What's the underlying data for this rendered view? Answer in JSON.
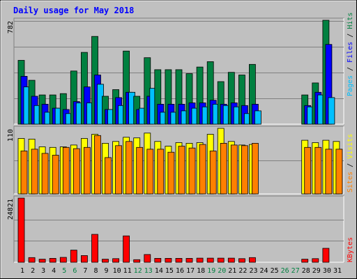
{
  "chart_data": {
    "type": "bar",
    "title": "Daily usage for May 2018",
    "colors": {
      "background": "#c0c0c0",
      "title": "#0000ff",
      "hits": "#008040",
      "files": "#0000ff",
      "pages": "#00c0ff",
      "visits": "#ffff00",
      "sites": "#ff8000",
      "kbytes": "#ff0000",
      "weekend_day": "#008040",
      "weekday": "#000000"
    },
    "days": [
      "1",
      "2",
      "3",
      "4",
      "5",
      "6",
      "7",
      "8",
      "9",
      "10",
      "11",
      "12",
      "13",
      "14",
      "15",
      "16",
      "17",
      "18",
      "19",
      "20",
      "21",
      "22",
      "23",
      "24",
      "25",
      "26",
      "27",
      "28",
      "29",
      "30",
      "31"
    ],
    "weekend_days": [
      "5",
      "6",
      "12",
      "13",
      "19",
      "20",
      "26",
      "27"
    ],
    "panels": [
      {
        "id": "hits-files-pages",
        "ymax_label": "782",
        "ymax": 782,
        "series": [
          {
            "name": "Hits",
            "key": "hits",
            "values": [
              480,
              330,
              220,
              220,
              230,
              400,
              540,
              660,
              210,
              260,
              550,
              210,
              500,
              410,
              410,
              410,
              380,
              430,
              470,
              320,
              390,
              370,
              450,
              null,
              null,
              null,
              null,
              220,
              310,
              782,
              null
            ]
          },
          {
            "name": "Files",
            "key": "files",
            "values": [
              360,
              210,
              150,
              120,
              110,
              170,
              280,
              370,
              110,
              200,
              240,
              110,
              210,
              150,
              150,
              150,
              160,
              160,
              180,
              150,
              160,
              140,
              150,
              null,
              null,
              null,
              null,
              140,
              240,
              600,
              null
            ]
          },
          {
            "name": "Pages",
            "key": "pages",
            "values": [
              280,
              140,
              90,
              120,
              80,
              160,
              160,
              300,
              110,
              140,
              240,
              120,
              270,
              90,
              90,
              100,
              120,
              130,
              150,
              140,
              130,
              80,
              100,
              null,
              null,
              null,
              null,
              130,
              220,
              200,
              null
            ]
          }
        ]
      },
      {
        "id": "visits-sites",
        "ymax_label": "110",
        "ymax": 110,
        "series": [
          {
            "name": "Visits",
            "key": "visits",
            "values": [
              93,
              92,
              79,
              78,
              79,
              82,
              93,
              100,
              85,
              88,
              95,
              94,
              102,
              88,
              80,
              86,
              85,
              86,
              100,
              110,
              88,
              82,
              83,
              null,
              null,
              null,
              null,
              90,
              86,
              90,
              88
            ]
          },
          {
            "name": "Sites",
            "key": "sites",
            "values": [
              72,
              75,
              68,
              65,
              78,
              76,
              78,
              98,
              61,
              81,
              88,
              78,
              75,
              75,
              70,
              80,
              77,
              83,
              72,
              85,
              82,
              81,
              85,
              null,
              null,
              null,
              null,
              78,
              78,
              75,
              75
            ]
          }
        ]
      },
      {
        "id": "kbytes",
        "ymax_label": "24821",
        "ymax": 24821,
        "series": [
          {
            "name": "KBytes",
            "key": "kbytes",
            "values": [
              24821,
              1800,
              1200,
              1500,
              1900,
              4700,
              2600,
              10800,
              1200,
              1400,
              10200,
              1000,
              3000,
              1500,
              1500,
              1500,
              1500,
              1600,
              1600,
              1600,
              1600,
              1400,
              1800,
              null,
              null,
              null,
              null,
              1200,
              1400,
              5400,
              null
            ]
          }
        ]
      }
    ],
    "side_labels": {
      "panel1": [
        {
          "text": "Pages",
          "key": "pages"
        },
        {
          "text": " / ",
          "key": "sep"
        },
        {
          "text": "Files",
          "key": "files"
        },
        {
          "text": " / ",
          "key": "sep"
        },
        {
          "text": "Hits",
          "key": "hits"
        }
      ],
      "panel2": [
        {
          "text": "Sites",
          "key": "sites"
        },
        {
          "text": " / ",
          "key": "sep"
        },
        {
          "text": "Visits",
          "key": "visits"
        }
      ],
      "panel3": [
        {
          "text": "KBytes",
          "key": "kbytes"
        }
      ]
    }
  }
}
